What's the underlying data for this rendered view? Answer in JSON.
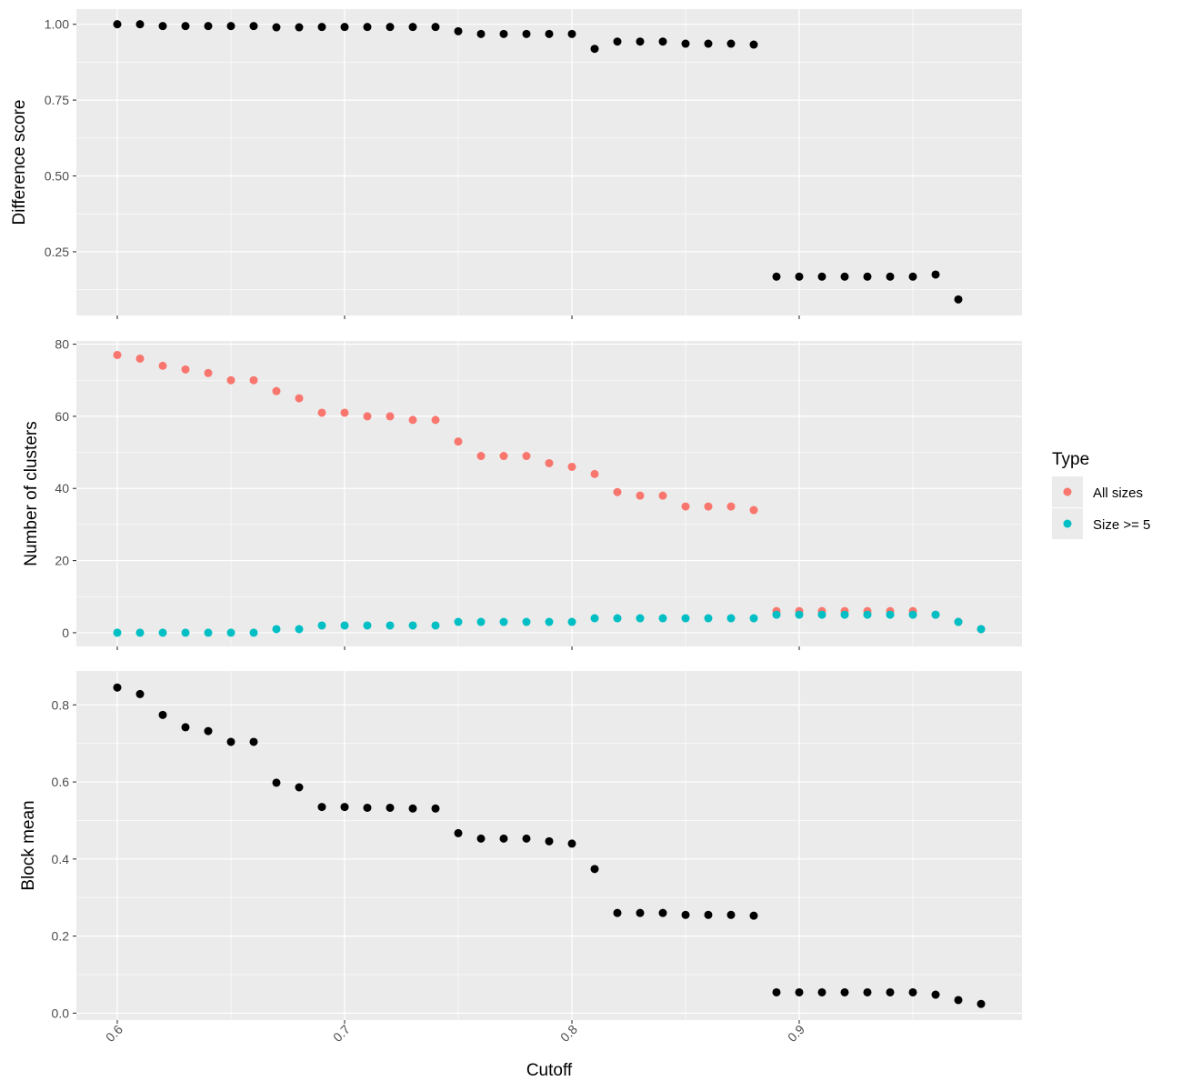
{
  "chart_data": {
    "type": "scatter",
    "xlabel": "Cutoff",
    "xlim": [
      0.582,
      0.998
    ],
    "x_ticks": [
      0.6,
      0.7,
      0.8,
      0.9
    ],
    "x_tick_labels": [
      "0.6",
      "0.7",
      "0.8",
      "0.9"
    ],
    "x_tick_label_rotation_deg": -45,
    "grid": true,
    "legend": {
      "title": "Type",
      "position": "right",
      "entries": [
        {
          "name": "All sizes",
          "color": "#F8766D"
        },
        {
          "name": "Size >= 5",
          "color": "#00BFC4"
        }
      ]
    },
    "panels": [
      {
        "ylabel": "Difference score",
        "ylim": [
          0.04,
          1.05
        ],
        "y_ticks": [
          0.25,
          0.5,
          0.75,
          1.0
        ],
        "y_tick_labels": [
          "0.25",
          "0.50",
          "0.75",
          "1.00"
        ],
        "series": [
          {
            "color": "#000000",
            "points": [
              [
                0.6,
                1.0
              ],
              [
                0.61,
                1.0
              ],
              [
                0.62,
                0.994
              ],
              [
                0.63,
                0.994
              ],
              [
                0.64,
                0.994
              ],
              [
                0.65,
                0.994
              ],
              [
                0.66,
                0.994
              ],
              [
                0.67,
                0.99
              ],
              [
                0.68,
                0.99
              ],
              [
                0.69,
                0.991
              ],
              [
                0.7,
                0.991
              ],
              [
                0.71,
                0.991
              ],
              [
                0.72,
                0.991
              ],
              [
                0.73,
                0.991
              ],
              [
                0.74,
                0.991
              ],
              [
                0.75,
                0.977
              ],
              [
                0.76,
                0.968
              ],
              [
                0.77,
                0.968
              ],
              [
                0.78,
                0.968
              ],
              [
                0.79,
                0.968
              ],
              [
                0.8,
                0.968
              ],
              [
                0.81,
                0.919
              ],
              [
                0.82,
                0.943
              ],
              [
                0.83,
                0.943
              ],
              [
                0.84,
                0.943
              ],
              [
                0.85,
                0.936
              ],
              [
                0.86,
                0.936
              ],
              [
                0.87,
                0.936
              ],
              [
                0.88,
                0.933
              ],
              [
                0.89,
                0.168
              ],
              [
                0.9,
                0.168
              ],
              [
                0.91,
                0.168
              ],
              [
                0.92,
                0.168
              ],
              [
                0.93,
                0.168
              ],
              [
                0.94,
                0.168
              ],
              [
                0.95,
                0.168
              ],
              [
                0.96,
                0.175
              ],
              [
                0.97,
                0.093
              ]
            ]
          }
        ]
      },
      {
        "ylabel": "Number of clusters",
        "ylim": [
          -3.8,
          80.9
        ],
        "y_ticks": [
          0,
          20,
          40,
          60,
          80
        ],
        "y_tick_labels": [
          "0",
          "20",
          "40",
          "60",
          "80"
        ],
        "series": [
          {
            "name": "All sizes",
            "color": "#F8766D",
            "points": [
              [
                0.6,
                77
              ],
              [
                0.61,
                76
              ],
              [
                0.62,
                74
              ],
              [
                0.63,
                73
              ],
              [
                0.64,
                72
              ],
              [
                0.65,
                70
              ],
              [
                0.66,
                70
              ],
              [
                0.67,
                67
              ],
              [
                0.68,
                65
              ],
              [
                0.69,
                61
              ],
              [
                0.7,
                61
              ],
              [
                0.71,
                60
              ],
              [
                0.72,
                60
              ],
              [
                0.73,
                59
              ],
              [
                0.74,
                59
              ],
              [
                0.75,
                53
              ],
              [
                0.76,
                49
              ],
              [
                0.77,
                49
              ],
              [
                0.78,
                49
              ],
              [
                0.79,
                47
              ],
              [
                0.8,
                46
              ],
              [
                0.81,
                44
              ],
              [
                0.82,
                39
              ],
              [
                0.83,
                38
              ],
              [
                0.84,
                38
              ],
              [
                0.85,
                35
              ],
              [
                0.86,
                35
              ],
              [
                0.87,
                35
              ],
              [
                0.88,
                34
              ],
              [
                0.89,
                6
              ],
              [
                0.9,
                6
              ],
              [
                0.91,
                6
              ],
              [
                0.92,
                6
              ],
              [
                0.93,
                6
              ],
              [
                0.94,
                6
              ],
              [
                0.95,
                6
              ],
              [
                0.96,
                5
              ],
              [
                0.97,
                3
              ],
              [
                0.98,
                1
              ]
            ]
          },
          {
            "name": "Size >= 5",
            "color": "#00BFC4",
            "points": [
              [
                0.6,
                0
              ],
              [
                0.61,
                0
              ],
              [
                0.62,
                0
              ],
              [
                0.63,
                0
              ],
              [
                0.64,
                0
              ],
              [
                0.65,
                0
              ],
              [
                0.66,
                0
              ],
              [
                0.67,
                1
              ],
              [
                0.68,
                1
              ],
              [
                0.69,
                2
              ],
              [
                0.7,
                2
              ],
              [
                0.71,
                2
              ],
              [
                0.72,
                2
              ],
              [
                0.73,
                2
              ],
              [
                0.74,
                2
              ],
              [
                0.75,
                3
              ],
              [
                0.76,
                3
              ],
              [
                0.77,
                3
              ],
              [
                0.78,
                3
              ],
              [
                0.79,
                3
              ],
              [
                0.8,
                3
              ],
              [
                0.81,
                4
              ],
              [
                0.82,
                4
              ],
              [
                0.83,
                4
              ],
              [
                0.84,
                4
              ],
              [
                0.85,
                4
              ],
              [
                0.86,
                4
              ],
              [
                0.87,
                4
              ],
              [
                0.88,
                4
              ],
              [
                0.89,
                5
              ],
              [
                0.9,
                5
              ],
              [
                0.91,
                5
              ],
              [
                0.92,
                5
              ],
              [
                0.93,
                5
              ],
              [
                0.94,
                5
              ],
              [
                0.95,
                5
              ],
              [
                0.96,
                5
              ],
              [
                0.97,
                3
              ],
              [
                0.98,
                1
              ]
            ]
          }
        ]
      },
      {
        "ylabel": "Block mean",
        "ylim": [
          -0.018,
          0.888
        ],
        "y_ticks": [
          0.0,
          0.2,
          0.4,
          0.6,
          0.8
        ],
        "y_tick_labels": [
          "0.0",
          "0.2",
          "0.4",
          "0.6",
          "0.8"
        ],
        "series": [
          {
            "color": "#000000",
            "points": [
              [
                0.6,
                0.845
              ],
              [
                0.61,
                0.828
              ],
              [
                0.62,
                0.774
              ],
              [
                0.63,
                0.742
              ],
              [
                0.64,
                0.732
              ],
              [
                0.65,
                0.704
              ],
              [
                0.66,
                0.704
              ],
              [
                0.67,
                0.598
              ],
              [
                0.68,
                0.586
              ],
              [
                0.69,
                0.535
              ],
              [
                0.7,
                0.535
              ],
              [
                0.71,
                0.533
              ],
              [
                0.72,
                0.533
              ],
              [
                0.73,
                0.531
              ],
              [
                0.74,
                0.531
              ],
              [
                0.75,
                0.467
              ],
              [
                0.76,
                0.453
              ],
              [
                0.77,
                0.453
              ],
              [
                0.78,
                0.453
              ],
              [
                0.79,
                0.446
              ],
              [
                0.8,
                0.44
              ],
              [
                0.81,
                0.374
              ],
              [
                0.82,
                0.26
              ],
              [
                0.83,
                0.26
              ],
              [
                0.84,
                0.26
              ],
              [
                0.85,
                0.255
              ],
              [
                0.86,
                0.255
              ],
              [
                0.87,
                0.255
              ],
              [
                0.88,
                0.253
              ],
              [
                0.89,
                0.054
              ],
              [
                0.9,
                0.054
              ],
              [
                0.91,
                0.054
              ],
              [
                0.92,
                0.054
              ],
              [
                0.93,
                0.054
              ],
              [
                0.94,
                0.054
              ],
              [
                0.95,
                0.054
              ],
              [
                0.96,
                0.048
              ],
              [
                0.97,
                0.034
              ],
              [
                0.98,
                0.024
              ]
            ]
          }
        ]
      }
    ]
  }
}
